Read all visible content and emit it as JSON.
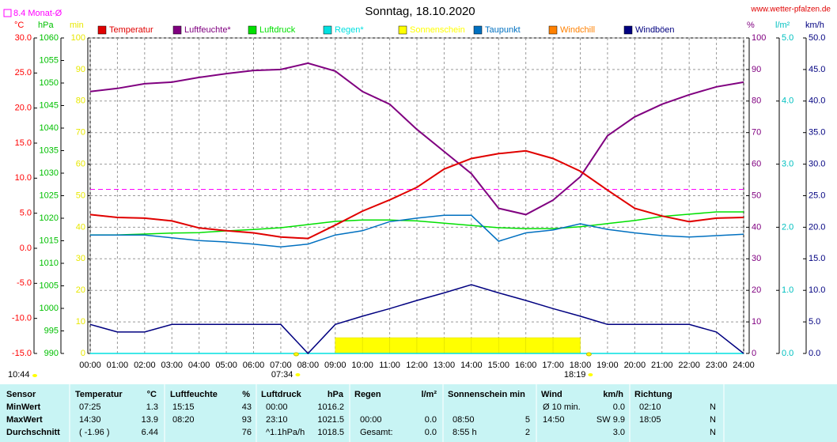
{
  "chart_data": {
    "type": "line",
    "title": "Sonntag, 18.10.2020",
    "source": "www.wetter-pfalzen.de",
    "time": "10:44",
    "sunrise": "07:34",
    "sunset": "18:19",
    "grid": true,
    "monthly_avg": {
      "label": "8.4 Monat-Ø",
      "value": 8.4,
      "axis": 0,
      "color": "#ff00ff"
    },
    "categories": [
      "00:00",
      "01:00",
      "02:00",
      "03:00",
      "04:00",
      "05:00",
      "06:00",
      "07:00",
      "08:00",
      "09:00",
      "10:00",
      "11:00",
      "12:00",
      "13:00",
      "14:00",
      "15:00",
      "16:00",
      "17:00",
      "18:00",
      "19:00",
      "20:00",
      "21:00",
      "22:00",
      "23:00",
      "24:00"
    ],
    "axes": [
      {
        "unit": "°C",
        "side": "left",
        "color": "#ff0000",
        "lim": [
          -15,
          30
        ],
        "ticks": [
          {
            "value": -15,
            "label": "-15.0"
          },
          {
            "value": -10,
            "label": "-10.0"
          },
          {
            "value": -5,
            "label": "-5.0"
          },
          {
            "value": 0,
            "label": "0.0"
          },
          {
            "value": 5,
            "label": "5.0"
          },
          {
            "value": 10,
            "label": "10.0"
          },
          {
            "value": 15,
            "label": "15.0"
          },
          {
            "value": 20,
            "label": "20.0"
          },
          {
            "value": 25,
            "label": "25.0"
          },
          {
            "value": 30,
            "label": "30.0"
          }
        ]
      },
      {
        "unit": "hPa",
        "side": "left",
        "color": "#00c000",
        "lim": [
          990,
          1060
        ],
        "ticks": [
          990,
          995,
          1000,
          1005,
          1010,
          1015,
          1020,
          1025,
          1030,
          1035,
          1040,
          1045,
          1050,
          1055,
          1060
        ]
      },
      {
        "unit": "min",
        "side": "left",
        "color": "#e8e800",
        "lim": [
          0,
          100
        ],
        "ticks": [
          0,
          10,
          20,
          30,
          40,
          50,
          60,
          70,
          80,
          90,
          100
        ]
      },
      {
        "unit": "%",
        "side": "right",
        "color": "#800080",
        "lim": [
          0,
          100
        ],
        "ticks": [
          0,
          10,
          20,
          30,
          40,
          50,
          60,
          70,
          80,
          90,
          100
        ]
      },
      {
        "unit": "l/m²",
        "side": "right",
        "color": "#00c0c0",
        "lim": [
          0,
          5
        ],
        "ticks": [
          {
            "value": 0,
            "label": "0.0"
          },
          {
            "value": 1,
            "label": "1.0"
          },
          {
            "value": 2,
            "label": "2.0"
          },
          {
            "value": 3,
            "label": "3.0"
          },
          {
            "value": 4,
            "label": "4.0"
          },
          {
            "value": 5,
            "label": "5.0"
          }
        ]
      },
      {
        "unit": "km/h",
        "side": "right",
        "color": "#000080",
        "lim": [
          0,
          50
        ],
        "ticks": [
          {
            "value": 0,
            "label": "0.0"
          },
          {
            "value": 5,
            "label": "5.0"
          },
          {
            "value": 10,
            "label": "10.0"
          },
          {
            "value": 15,
            "label": "15.0"
          },
          {
            "value": 20,
            "label": "20.0"
          },
          {
            "value": 25,
            "label": "25.0"
          },
          {
            "value": 30,
            "label": "30.0"
          },
          {
            "value": 35,
            "label": "35.0"
          },
          {
            "value": 40,
            "label": "40.0"
          },
          {
            "value": 45,
            "label": "45.0"
          },
          {
            "value": 50,
            "label": "50.0"
          }
        ]
      }
    ],
    "series": [
      {
        "name": "Temperatur",
        "color": "#e00000",
        "axis": 0,
        "kind": "line",
        "values": [
          4.8,
          4.4,
          4.3,
          3.9,
          2.9,
          2.5,
          2.2,
          1.6,
          1.4,
          3.3,
          5.3,
          6.9,
          8.7,
          11.3,
          12.8,
          13.5,
          13.9,
          12.8,
          11.0,
          8.3,
          5.7,
          4.6,
          3.8,
          4.3,
          4.4
        ]
      },
      {
        "name": "Luftfeuchte*",
        "color": "#800080",
        "axis": 3,
        "kind": "line",
        "values": [
          83,
          84,
          85.5,
          86,
          87.5,
          88.7,
          89.7,
          90,
          92,
          89.5,
          83,
          79,
          71,
          64,
          57,
          46,
          44,
          48.6,
          56,
          69,
          75,
          79,
          82,
          84.5,
          86
        ]
      },
      {
        "name": "Luftdruck",
        "color": "#00e000",
        "axis": 1,
        "kind": "line",
        "values": [
          1016.3,
          1016.3,
          1016.5,
          1016.7,
          1016.8,
          1017.2,
          1017.5,
          1017.9,
          1018.6,
          1019.3,
          1019.6,
          1019.6,
          1019.4,
          1018.9,
          1018.4,
          1017.9,
          1017.7,
          1017.7,
          1018.1,
          1018.8,
          1019.5,
          1020.4,
          1020.9,
          1021.4,
          1021.4
        ]
      },
      {
        "name": "Regen*",
        "color": "#00e0e0",
        "axis": 4,
        "kind": "line",
        "values": [
          0,
          0,
          0,
          0,
          0,
          0,
          0,
          0,
          0,
          0,
          0,
          0,
          0,
          0,
          0,
          0,
          0,
          0,
          0,
          0,
          0,
          0,
          0,
          0,
          0
        ]
      },
      {
        "name": "Sonnenschein",
        "color": "#ffff00",
        "axis": 2,
        "kind": "bar",
        "values": [
          0,
          0,
          0,
          0,
          0,
          0,
          0,
          0,
          0,
          5,
          5,
          5,
          5,
          5,
          5,
          5,
          5,
          5,
          0,
          0,
          0,
          0,
          0,
          0,
          0
        ]
      },
      {
        "name": "Taupunkt",
        "color": "#0070c0",
        "axis": 0,
        "kind": "line",
        "values": [
          1.9,
          1.9,
          1.9,
          1.5,
          1.1,
          0.9,
          0.6,
          0.2,
          0.6,
          1.9,
          2.5,
          3.8,
          4.3,
          4.7,
          4.7,
          1.0,
          2.2,
          2.6,
          3.5,
          2.7,
          2.2,
          1.8,
          1.6,
          1.8,
          2.0
        ]
      },
      {
        "name": "Windchill",
        "color": "#ff8000",
        "axis": 0,
        "kind": "line",
        "values": [
          4.8,
          4.4,
          4.3,
          3.9,
          2.9,
          2.5,
          2.2,
          1.6,
          1.4,
          3.3,
          5.3,
          6.9,
          8.7,
          11.3,
          12.8,
          13.5,
          13.9,
          12.8,
          11.0,
          8.3,
          5.7,
          4.6,
          3.8,
          4.3,
          4.4
        ]
      },
      {
        "name": "Windböen",
        "color": "#000080",
        "axis": 5,
        "kind": "line",
        "values": [
          4.6,
          3.4,
          3.4,
          4.6,
          4.6,
          4.6,
          4.6,
          4.6,
          0,
          4.6,
          5.9,
          7.1,
          8.4,
          9.6,
          10.9,
          9.6,
          8.4,
          7.1,
          5.9,
          4.6,
          4.6,
          4.6,
          4.6,
          3.4,
          0
        ]
      }
    ]
  },
  "table": {
    "header": [
      "Sensor",
      "Temperatur",
      "°C",
      "Luftfeuchte",
      "%",
      "Luftdruck",
      "hPa",
      "Regen",
      "l/m²",
      "Sonnenschein min",
      "Wind",
      "km/h",
      "Richtung"
    ],
    "rows": [
      {
        "label": "MinWert",
        "temp_time": "07:25",
        "temp": "1.3",
        "hum_time": "15:15",
        "hum": "43",
        "pres_time": "00:00",
        "pres": "1016.2",
        "wind_time": "Ø 10 min.",
        "wind": "0.0",
        "dir_time": "02:10",
        "dir": "N"
      },
      {
        "label": "MaxWert",
        "temp_time": "14:30",
        "temp": "13.9",
        "hum_time": "08:20",
        "hum": "93",
        "pres_time": "23:10",
        "pres": "1021.5",
        "rain_time": "00:00",
        "rain": "0.0",
        "sun_time": "08:50",
        "sun": "5",
        "wind_time": "14:50",
        "wind": "SW 9.9",
        "dir_time": "18:05",
        "dir": "N"
      },
      {
        "label": "Durchschnitt",
        "temp_time": "( -1.96 )",
        "temp": "6.44",
        "hum": "76",
        "pres_time": "^1.1hPa/h",
        "pres": "1018.5",
        "rain_time": "Gesamt:",
        "rain": "0.0",
        "sun_time": "8:55 h",
        "sun": "2",
        "wind": "3.0",
        "dir": "N"
      }
    ]
  }
}
